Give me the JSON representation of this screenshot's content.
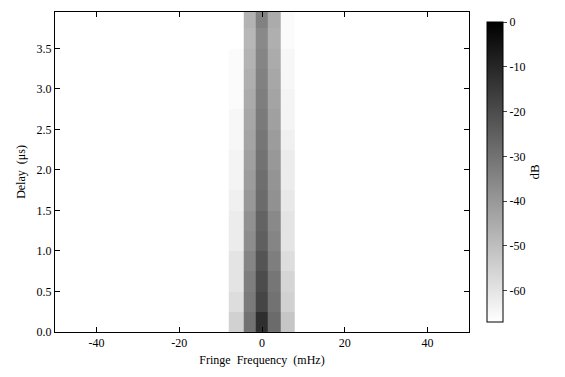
{
  "chart_data": {
    "type": "heatmap",
    "x_label": "Fringe  Frequency  (mHz)",
    "y_label": "Delay  (μs)",
    "x": [
      -48,
      -40,
      -32,
      -24,
      -16,
      -10,
      -6,
      -3,
      0,
      3,
      6,
      10,
      16,
      24,
      32,
      40,
      48
    ],
    "y": [
      0.125,
      0.375,
      0.625,
      0.875,
      1.125,
      1.375,
      1.625,
      1.875,
      2.125,
      2.375,
      2.625,
      2.875,
      3.125,
      3.375,
      3.625,
      3.875
    ],
    "z": [
      [
        -67,
        -67,
        -67,
        -67,
        -67,
        -67,
        -55,
        -30,
        -12,
        -28,
        -52,
        -67,
        -67,
        -67,
        -67,
        -67,
        -67
      ],
      [
        -67,
        -67,
        -67,
        -67,
        -67,
        -67,
        -58,
        -32,
        -18,
        -30,
        -55,
        -67,
        -67,
        -67,
        -67,
        -67,
        -67
      ],
      [
        -67,
        -67,
        -67,
        -67,
        -67,
        -67,
        -60,
        -33,
        -20,
        -31,
        -56,
        -67,
        -67,
        -67,
        -67,
        -67,
        -67
      ],
      [
        -67,
        -67,
        -67,
        -67,
        -67,
        -67,
        -60,
        -35,
        -22,
        -33,
        -58,
        -67,
        -67,
        -67,
        -67,
        -67,
        -67
      ],
      [
        -67,
        -67,
        -67,
        -67,
        -67,
        -67,
        -62,
        -37,
        -25,
        -35,
        -60,
        -67,
        -67,
        -67,
        -67,
        -67,
        -67
      ],
      [
        -67,
        -67,
        -67,
        -67,
        -67,
        -67,
        -62,
        -38,
        -26,
        -36,
        -60,
        -67,
        -67,
        -67,
        -67,
        -67,
        -67
      ],
      [
        -67,
        -67,
        -67,
        -67,
        -67,
        -67,
        -63,
        -40,
        -28,
        -38,
        -61,
        -67,
        -67,
        -67,
        -67,
        -67,
        -67
      ],
      [
        -67,
        -67,
        -67,
        -67,
        -67,
        -67,
        -64,
        -41,
        -29,
        -39,
        -62,
        -67,
        -67,
        -67,
        -67,
        -67,
        -67
      ],
      [
        -67,
        -67,
        -67,
        -67,
        -67,
        -67,
        -64,
        -42,
        -30,
        -40,
        -62,
        -67,
        -67,
        -67,
        -67,
        -67,
        -67
      ],
      [
        -67,
        -67,
        -67,
        -67,
        -67,
        -67,
        -65,
        -43,
        -31,
        -41,
        -63,
        -67,
        -67,
        -67,
        -67,
        -67,
        -67
      ],
      [
        -67,
        -67,
        -67,
        -67,
        -67,
        -67,
        -65,
        -44,
        -32,
        -42,
        -64,
        -67,
        -67,
        -67,
        -67,
        -67,
        -67
      ],
      [
        -67,
        -67,
        -67,
        -67,
        -67,
        -67,
        -66,
        -45,
        -33,
        -43,
        -64,
        -67,
        -67,
        -67,
        -67,
        -67,
        -67
      ],
      [
        -67,
        -67,
        -67,
        -67,
        -67,
        -67,
        -66,
        -46,
        -34,
        -44,
        -65,
        -67,
        -67,
        -67,
        -67,
        -67,
        -67
      ],
      [
        -67,
        -67,
        -67,
        -67,
        -67,
        -67,
        -66,
        -47,
        -35,
        -45,
        -65,
        -67,
        -67,
        -67,
        -67,
        -67,
        -67
      ],
      [
        -67,
        -67,
        -67,
        -67,
        -67,
        -67,
        -67,
        -48,
        -36,
        -46,
        -66,
        -67,
        -67,
        -67,
        -67,
        -67,
        -67
      ],
      [
        -67,
        -67,
        -67,
        -67,
        -67,
        -67,
        -67,
        -47,
        -34,
        -45,
        -66,
        -67,
        -67,
        -67,
        -67,
        -67,
        -67
      ]
    ],
    "xlim": [
      -50,
      50
    ],
    "xticks": [
      -40,
      -20,
      0,
      20,
      40
    ],
    "ylim": [
      0,
      3.95
    ],
    "yticks": [
      {
        "value": 0,
        "label": "0.0"
      },
      0.5,
      {
        "value": 1,
        "label": "1.0"
      },
      1.5,
      {
        "value": 2,
        "label": "2.0"
      },
      2.5,
      {
        "value": 3,
        "label": "3.0"
      },
      3.5
    ],
    "colorbar": {
      "title": "dB",
      "range": [
        -67,
        0
      ],
      "ticks": [
        0,
        -10,
        -20,
        -30,
        -40,
        -50,
        -60
      ]
    },
    "color": "Greys",
    "grid": false
  }
}
